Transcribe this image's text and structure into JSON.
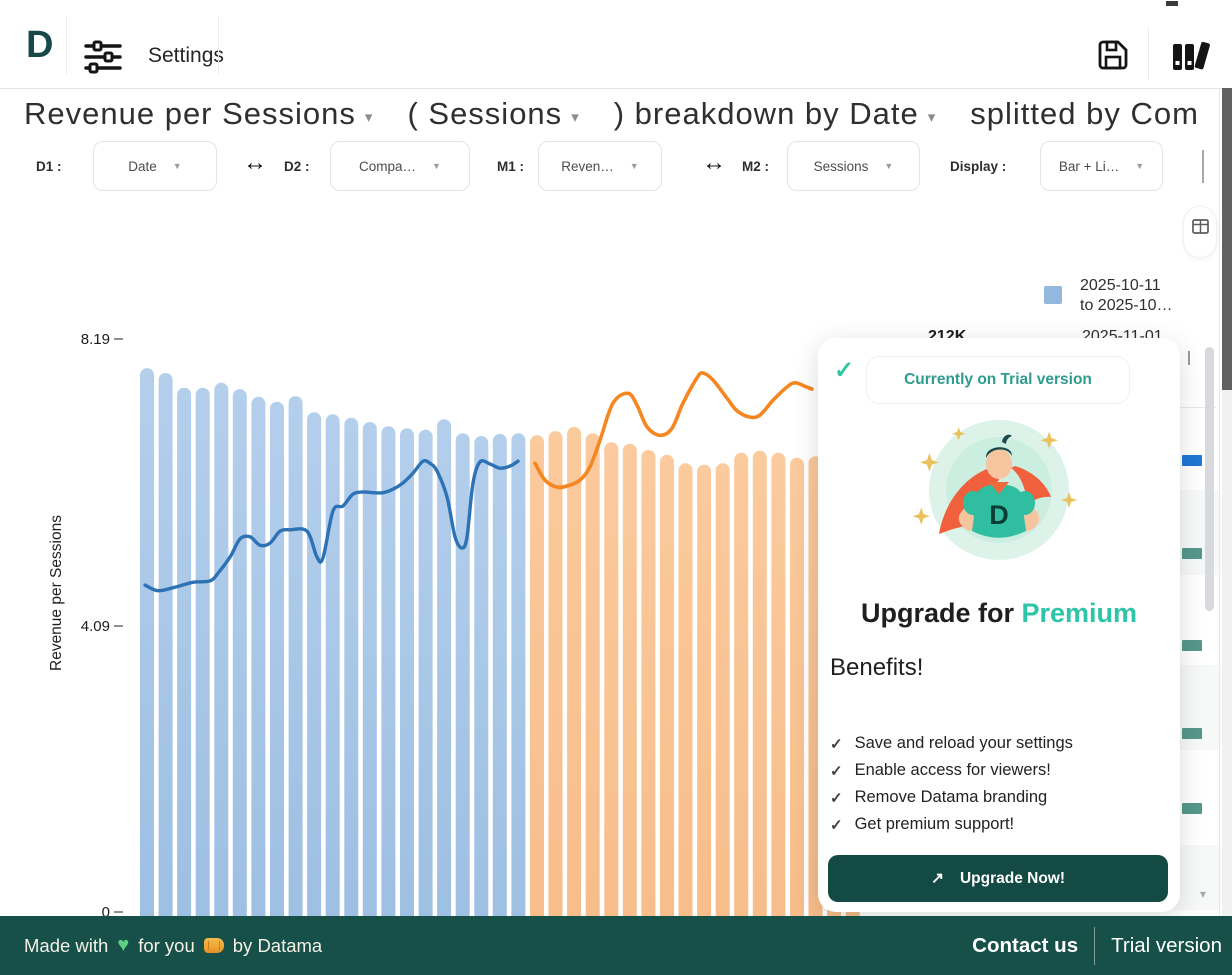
{
  "header": {
    "settings_label": "Settings",
    "logo_letter": "D"
  },
  "title_parts": [
    {
      "text": "Revenue per Sessions",
      "caret": true
    },
    {
      "text": "( Sessions",
      "caret": true
    },
    {
      "text": ") breakdown by Date",
      "caret": true
    },
    {
      "text": "splitted by Com",
      "caret": false
    }
  ],
  "controls": [
    {
      "name": "d1",
      "label": "D1 :",
      "value": "Date"
    },
    {
      "name": "d2",
      "label": "D2 :",
      "value": "Compa…"
    },
    {
      "name": "m1",
      "label": "M1 :",
      "value": "Reven…"
    },
    {
      "name": "m2",
      "label": "M2 :",
      "value": "Sessions"
    },
    {
      "name": "display",
      "label": "Display :",
      "value": "Bar + Li…"
    }
  ],
  "icons": {
    "swap": "↔",
    "select_caret": "▼",
    "title_caret": "▾",
    "scroll_down_caret": "▾"
  },
  "chart_data": {
    "type": "bar+line",
    "ylabel": "Revenue per Sessions",
    "yticks": [
      0,
      4.09,
      8.19
    ],
    "ylim": [
      0,
      8.19
    ],
    "grid": false,
    "legend_position": "top-right",
    "legend": [
      {
        "label_lines": [
          "2025-10-11",
          "to 2025-10…"
        ],
        "color": "#92b9dd"
      },
      {
        "label_lines": [
          "2025-11-01"
        ],
        "color": "#f6b980",
        "partially_hidden": true
      }
    ],
    "partial_value_label": "212K",
    "series": [
      {
        "name": "2025-10-11 to 2025-10… (bars)",
        "type": "bar",
        "color": "#a6c6e7",
        "values": [
          7.77,
          7.7,
          7.49,
          7.49,
          7.56,
          7.47,
          7.36,
          7.29,
          7.37,
          7.14,
          7.11,
          7.06,
          7.0,
          6.94,
          6.91,
          6.89,
          7.04,
          6.84,
          6.8,
          6.83,
          6.84
        ]
      },
      {
        "name": "2025-11-01… (bars)",
        "type": "bar",
        "color": "#f9c492",
        "values": [
          6.81,
          6.87,
          6.93,
          6.84,
          6.71,
          6.69,
          6.6,
          6.53,
          6.41,
          6.39,
          6.41,
          6.56,
          6.59,
          6.56,
          6.49,
          6.51,
          6.5,
          6.49
        ]
      },
      {
        "name": "2025-10-11 to 2025-10… (line)",
        "type": "line",
        "color": "#2d72b4",
        "points": [
          [
            145,
            4.67
          ],
          [
            158,
            4.59
          ],
          [
            175,
            4.64
          ],
          [
            193,
            4.71
          ],
          [
            210,
            4.73
          ],
          [
            218,
            4.84
          ],
          [
            230,
            5.07
          ],
          [
            240,
            5.33
          ],
          [
            250,
            5.36
          ],
          [
            260,
            5.24
          ],
          [
            270,
            5.27
          ],
          [
            280,
            5.44
          ],
          [
            290,
            5.46
          ],
          [
            307,
            5.44
          ],
          [
            317,
            5.07
          ],
          [
            323,
            5.06
          ],
          [
            333,
            5.73
          ],
          [
            343,
            5.8
          ],
          [
            353,
            5.97
          ],
          [
            363,
            6.0
          ],
          [
            373,
            5.99
          ],
          [
            383,
            5.99
          ],
          [
            393,
            6.04
          ],
          [
            403,
            6.13
          ],
          [
            413,
            6.27
          ],
          [
            423,
            6.44
          ],
          [
            430,
            6.41
          ],
          [
            437,
            6.3
          ],
          [
            447,
            5.93
          ],
          [
            455,
            5.36
          ],
          [
            462,
            5.2
          ],
          [
            467,
            5.36
          ],
          [
            473,
            6.13
          ],
          [
            480,
            6.43
          ],
          [
            490,
            6.4
          ],
          [
            500,
            6.34
          ],
          [
            510,
            6.37
          ],
          [
            518,
            6.44
          ]
        ]
      },
      {
        "name": "2025-11-01… (line)",
        "type": "line",
        "color": "#f6861f",
        "points": [
          [
            535,
            6.41
          ],
          [
            545,
            6.17
          ],
          [
            557,
            6.07
          ],
          [
            568,
            6.09
          ],
          [
            580,
            6.17
          ],
          [
            590,
            6.36
          ],
          [
            600,
            6.74
          ],
          [
            613,
            7.27
          ],
          [
            628,
            7.41
          ],
          [
            637,
            7.24
          ],
          [
            647,
            6.93
          ],
          [
            660,
            6.81
          ],
          [
            672,
            6.91
          ],
          [
            683,
            7.27
          ],
          [
            697,
            7.63
          ],
          [
            703,
            7.7
          ],
          [
            713,
            7.6
          ],
          [
            727,
            7.34
          ],
          [
            737,
            7.16
          ],
          [
            750,
            7.07
          ],
          [
            760,
            7.1
          ],
          [
            773,
            7.31
          ],
          [
            787,
            7.5
          ],
          [
            795,
            7.56
          ],
          [
            805,
            7.51
          ],
          [
            812,
            7.47
          ]
        ]
      }
    ]
  },
  "side_panel": {
    "bars": [
      {
        "color": "#2277d2",
        "top": 455
      },
      {
        "color": "#55988b",
        "top": 548
      },
      {
        "color": "#55988b",
        "top": 640
      },
      {
        "color": "#55988b",
        "top": 728
      },
      {
        "color": "#55988b",
        "top": 803
      }
    ]
  },
  "popup": {
    "check_glyph": "✓",
    "status": "Currently on Trial version",
    "avatar_letter": "D",
    "heading": "Upgrade for ",
    "heading_accent": "Premium",
    "subheading": "Benefits!",
    "benefits": [
      "Save and reload your settings",
      "Enable access for viewers!",
      "Remove Datama branding",
      "Get premium support!"
    ],
    "cta_arrow": "↗",
    "cta": "Upgrade Now!"
  },
  "footer": {
    "made_prefix": "Made with",
    "heart": "♥",
    "made_mid": "for you",
    "made_suffix": "by Datama",
    "contact": "Contact us",
    "trial": "Trial version"
  }
}
